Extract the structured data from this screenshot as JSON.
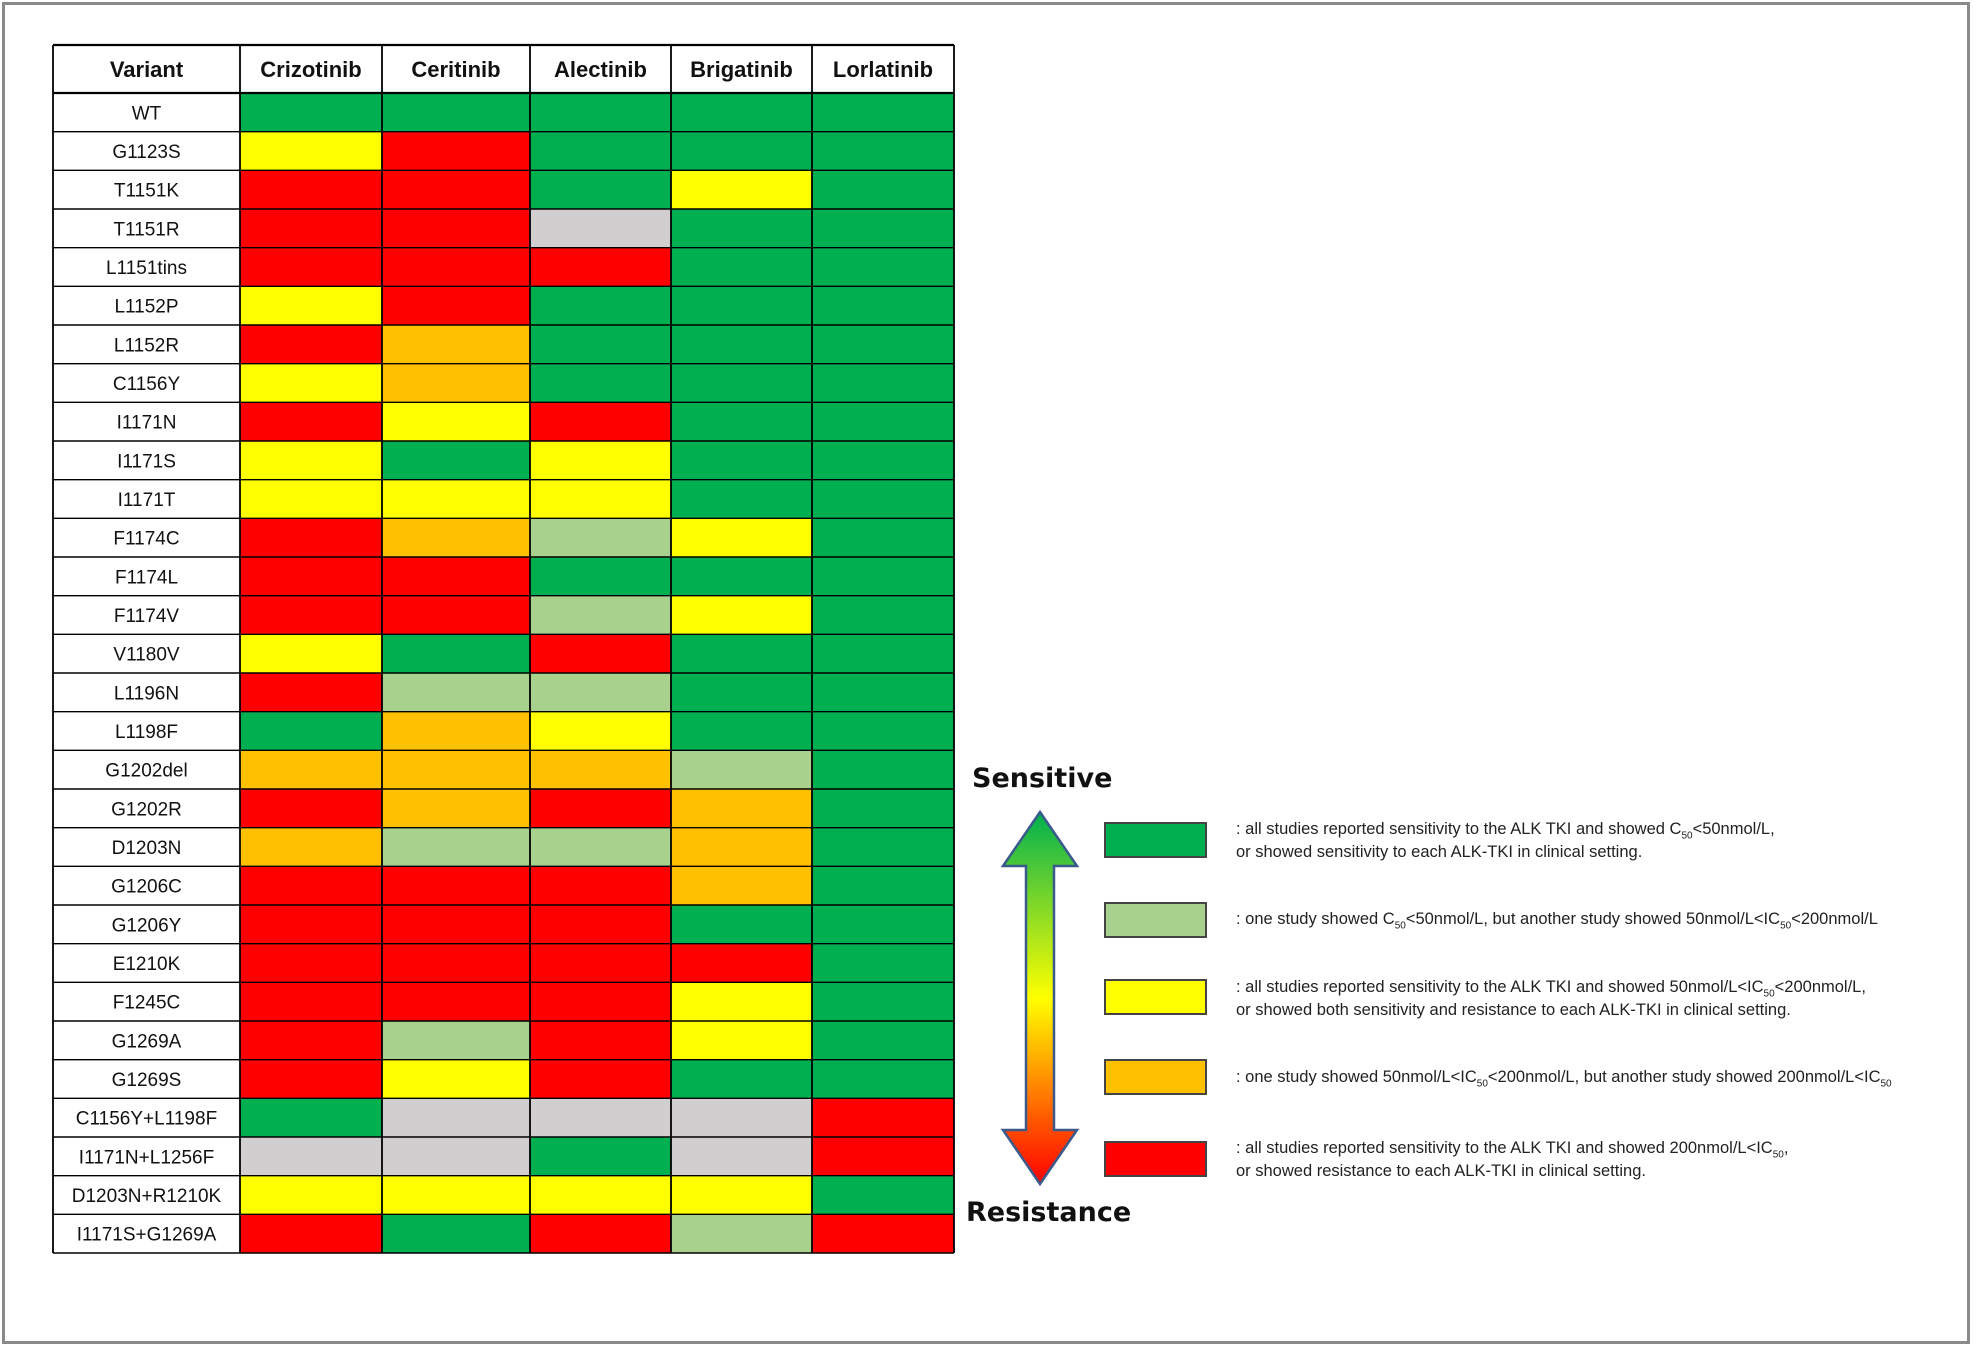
{
  "colors": {
    "sensitive": "#00b050",
    "partially_sensitive": "#a9d18e",
    "intermediate": "#ffff00",
    "partially_resistant": "#ffc000",
    "resistant": "#ff0000",
    "no_data": "#d0cece"
  },
  "chart_data": {
    "type": "heatmap",
    "corner_label": "Variant",
    "columns": [
      "Crizotinib",
      "Ceritinib",
      "Alectinib",
      "Brigatinib",
      "Lorlatinib"
    ],
    "rows": [
      {
        "variant": "WT",
        "cells": [
          "G",
          "G",
          "G",
          "G",
          "G"
        ]
      },
      {
        "variant": "G1123S",
        "cells": [
          "Y",
          "R",
          "G",
          "G",
          "G"
        ]
      },
      {
        "variant": "T1151K",
        "cells": [
          "R",
          "R",
          "G",
          "Y",
          "G"
        ]
      },
      {
        "variant": "T1151R",
        "cells": [
          "R",
          "R",
          "N",
          "G",
          "G"
        ]
      },
      {
        "variant": "L1151tins",
        "cells": [
          "R",
          "R",
          "R",
          "G",
          "G"
        ]
      },
      {
        "variant": "L1152P",
        "cells": [
          "Y",
          "R",
          "G",
          "G",
          "G"
        ]
      },
      {
        "variant": "L1152R",
        "cells": [
          "R",
          "O",
          "G",
          "G",
          "G"
        ]
      },
      {
        "variant": "C1156Y",
        "cells": [
          "Y",
          "O",
          "G",
          "G",
          "G"
        ]
      },
      {
        "variant": "I1171N",
        "cells": [
          "R",
          "Y",
          "R",
          "G",
          "G"
        ]
      },
      {
        "variant": "I1171S",
        "cells": [
          "Y",
          "G",
          "Y",
          "G",
          "G"
        ]
      },
      {
        "variant": "I1171T",
        "cells": [
          "Y",
          "Y",
          "Y",
          "G",
          "G"
        ]
      },
      {
        "variant": "F1174C",
        "cells": [
          "R",
          "O",
          "L",
          "Y",
          "G"
        ]
      },
      {
        "variant": "F1174L",
        "cells": [
          "R",
          "R",
          "G",
          "G",
          "G"
        ]
      },
      {
        "variant": "F1174V",
        "cells": [
          "R",
          "R",
          "L",
          "Y",
          "G"
        ]
      },
      {
        "variant": "V1180V",
        "cells": [
          "Y",
          "G",
          "R",
          "G",
          "G"
        ]
      },
      {
        "variant": "L1196N",
        "cells": [
          "R",
          "L",
          "L",
          "G",
          "G"
        ]
      },
      {
        "variant": "L1198F",
        "cells": [
          "G",
          "O",
          "Y",
          "G",
          "G"
        ]
      },
      {
        "variant": "G1202del",
        "cells": [
          "O",
          "O",
          "O",
          "L",
          "G"
        ]
      },
      {
        "variant": "G1202R",
        "cells": [
          "R",
          "O",
          "R",
          "O",
          "G"
        ]
      },
      {
        "variant": "D1203N",
        "cells": [
          "O",
          "L",
          "L",
          "O",
          "G"
        ]
      },
      {
        "variant": "G1206C",
        "cells": [
          "R",
          "R",
          "R",
          "O",
          "G"
        ]
      },
      {
        "variant": "G1206Y",
        "cells": [
          "R",
          "R",
          "R",
          "G",
          "G"
        ]
      },
      {
        "variant": "E1210K",
        "cells": [
          "R",
          "R",
          "R",
          "R",
          "G"
        ]
      },
      {
        "variant": "F1245C",
        "cells": [
          "R",
          "R",
          "R",
          "Y",
          "G"
        ]
      },
      {
        "variant": "G1269A",
        "cells": [
          "R",
          "L",
          "R",
          "Y",
          "G"
        ]
      },
      {
        "variant": "G1269S",
        "cells": [
          "R",
          "Y",
          "R",
          "G",
          "G"
        ]
      },
      {
        "variant": "C1156Y+L1198F",
        "cells": [
          "G",
          "N",
          "N",
          "N",
          "R"
        ]
      },
      {
        "variant": "I1171N+L1256F",
        "cells": [
          "N",
          "N",
          "G",
          "N",
          "R"
        ]
      },
      {
        "variant": "D1203N+R1210K",
        "cells": [
          "Y",
          "Y",
          "Y",
          "Y",
          "G"
        ]
      },
      {
        "variant": "I1171S+G1269A",
        "cells": [
          "R",
          "G",
          "R",
          "L",
          "R"
        ]
      }
    ],
    "category_codes": {
      "G": "sensitive",
      "L": "partially_sensitive",
      "Y": "intermediate",
      "O": "partially_resistant",
      "R": "resistant",
      "N": "no_data"
    }
  },
  "legend": {
    "top_label": "Sensitive",
    "bottom_label": "Resistance",
    "gradient_colors": [
      "#00b050",
      "#ffff00",
      "#ff0000"
    ],
    "items": [
      {
        "category": "sensitive",
        "line1_a": ": all  studies reported sensitivity to the ALK TKI and showed C",
        "line1_sub": "50",
        "line1_b": "<50nmol/L,",
        "line2": " or showed sensitivity to each ALK-TKI in clinical setting."
      },
      {
        "category": "partially_sensitive",
        "line1_a": ": one study showed C",
        "line1_sub": "50",
        "line1_b": "<50nmol/L, but another study showed 50nmol/L<IC",
        "line1_sub2": "50",
        "line1_c": "<200nmol/L",
        "line2": ""
      },
      {
        "category": "intermediate",
        "line1_a": ": all  studies reported sensitivity to the ALK TKI and showed 50nmol/L<IC",
        "line1_sub": "50",
        "line1_b": "<200nmol/L,",
        "line2": " or showed both sensitivity and resistance to each ALK-TKI in clinical setting."
      },
      {
        "category": "partially_resistant",
        "line1_a": ": one study showed 50nmol/L<IC",
        "line1_sub": "50",
        "line1_b": "<200nmol/L, but another study showed 200nmol/L<IC",
        "line1_sub2": "50",
        "line1_c": "",
        "line2": ""
      },
      {
        "category": "resistant",
        "line1_a": ": all  studies reported sensitivity to the ALK TKI and showed 200nmol/L<IC",
        "line1_sub": "50",
        "line1_b": ",",
        "line2": " or showed resistance to each ALK-TKI in clinical setting."
      }
    ]
  }
}
